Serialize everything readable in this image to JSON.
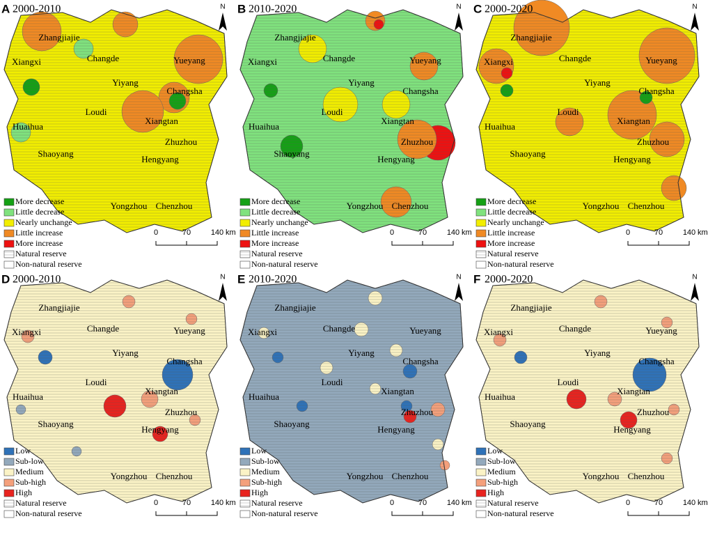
{
  "panels": [
    {
      "letter": "A",
      "period": "2000-2010"
    },
    {
      "letter": "B",
      "period": "2010-2020"
    },
    {
      "letter": "C",
      "period": "2000-2020"
    },
    {
      "letter": "D",
      "period": "2000-2010"
    },
    {
      "letter": "E",
      "period": "2010-2020"
    },
    {
      "letter": "F",
      "period": "2000-2020"
    }
  ],
  "north": "N",
  "cities": [
    "Zhangjiajie",
    "Changde",
    "Xiangxi",
    "Yueyang",
    "Yiyang",
    "Changsha",
    "Loudi",
    "Xiangtan",
    "Huaihua",
    "Zhuzhou",
    "Shaoyang",
    "Hengyang",
    "Yongzhou",
    "Chenzhou"
  ],
  "change_legend": [
    {
      "label": "More decrease",
      "color": "#15a015"
    },
    {
      "label": "Little decrease",
      "color": "#80e27e"
    },
    {
      "label": "Nearly unchange",
      "color": "#f2ee00"
    },
    {
      "label": "Little increase",
      "color": "#f08a24"
    },
    {
      "label": "More increase",
      "color": "#ee1111"
    }
  ],
  "level_legend": [
    {
      "label": "Low",
      "color": "#2f72b8"
    },
    {
      "label": "Sub-low",
      "color": "#93a9bc"
    },
    {
      "label": "Medium",
      "color": "#fbf3c6"
    },
    {
      "label": "Sub-high",
      "color": "#f4a07c"
    },
    {
      "label": "High",
      "color": "#e8231f"
    }
  ],
  "reserve_legend": [
    "Natural reserve",
    "Non-natural reserve"
  ],
  "scale": {
    "ticks": [
      0,
      70,
      140
    ],
    "unit": "km"
  }
}
